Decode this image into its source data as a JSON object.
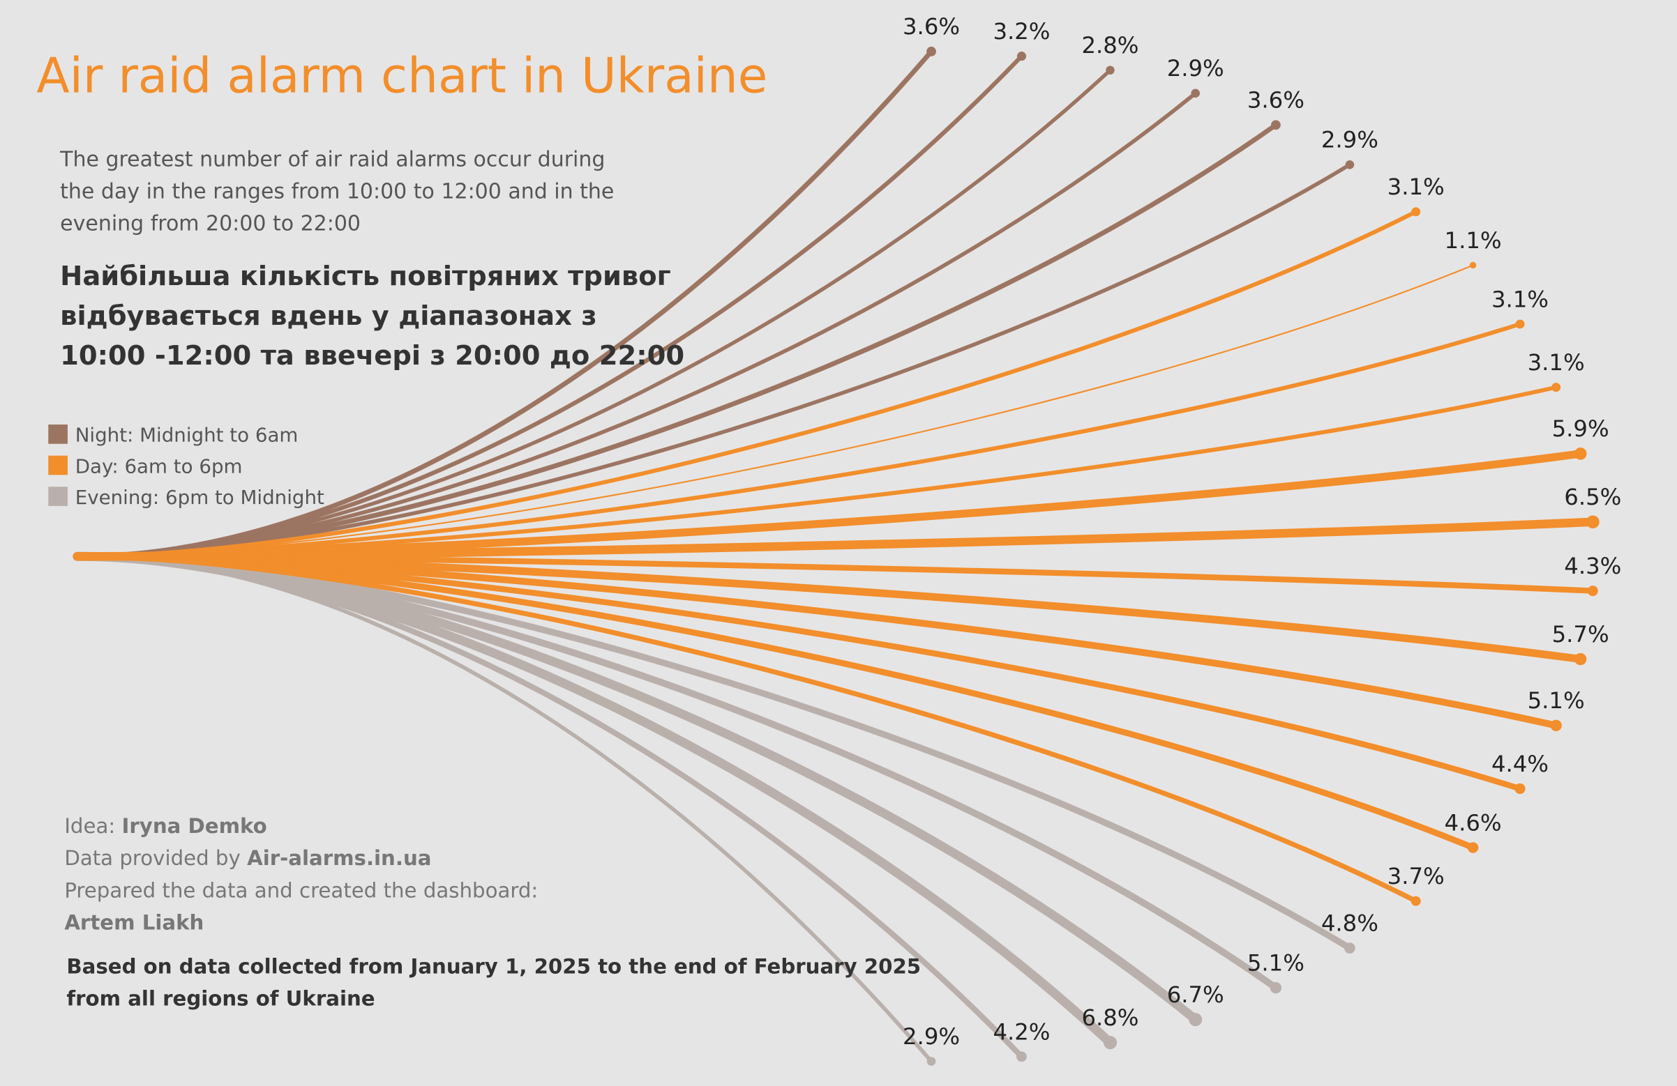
{
  "chart_data": {
    "type": "radial-lines",
    "title": "Air raid alarm chart in Ukraine",
    "subtitle_lines": [
      "The greatest number of air raid alarms occur during",
      "the day in the ranges from 10:00 to 12:00 and in the",
      "evening from 20:00 to 22:00"
    ],
    "headline_lines": [
      "Найбільша кількість повітряних тривог",
      "відбувається вдень у діапазонах з",
      "10:00 -12:00 та ввечері з 20:00 до 22:00"
    ],
    "series": [
      {
        "name": "Night: Midnight to 6am",
        "color": "#9c7562",
        "values": [
          3.6,
          3.2,
          2.8,
          2.9,
          3.6,
          2.9
        ],
        "value_labels": [
          "3.6%",
          "3.2%",
          "2.8%",
          "2.9%",
          "3.6%",
          "2.9%"
        ]
      },
      {
        "name": "Day: 6am to 6pm",
        "color": "#f28e2b",
        "values": [
          3.1,
          1.1,
          3.1,
          3.1,
          5.9,
          6.5,
          4.3,
          5.7,
          5.1,
          4.4,
          4.6,
          3.7
        ],
        "value_labels": [
          "3.1%",
          "1.1%",
          "3.1%",
          "3.1%",
          "5.9%",
          "6.5%",
          "4.3%",
          "5.7%",
          "5.1%",
          "4.4%",
          "4.6%",
          "3.7%"
        ]
      },
      {
        "name": "Evening: 6pm to Midnight",
        "color": "#bab0ab",
        "values": [
          4.8,
          5.1,
          6.7,
          6.8,
          4.2,
          2.9
        ],
        "value_labels": [
          "4.8%",
          "5.1%",
          "6.7%",
          "6.8%",
          "4.2%",
          "2.9%"
        ]
      }
    ],
    "credits": [
      {
        "label": "Idea:",
        "name": "Iryna Demko"
      },
      {
        "label": "Data provided by",
        "name": "Air-alarms.in.ua"
      },
      {
        "label": "Prepared the data and created the dashboard:",
        "name": "Artem Liakh"
      }
    ],
    "note_lines": [
      "Based on data collected from January 1, 2025 to the end of February 2025",
      "from all regions of Ukraine"
    ]
  }
}
